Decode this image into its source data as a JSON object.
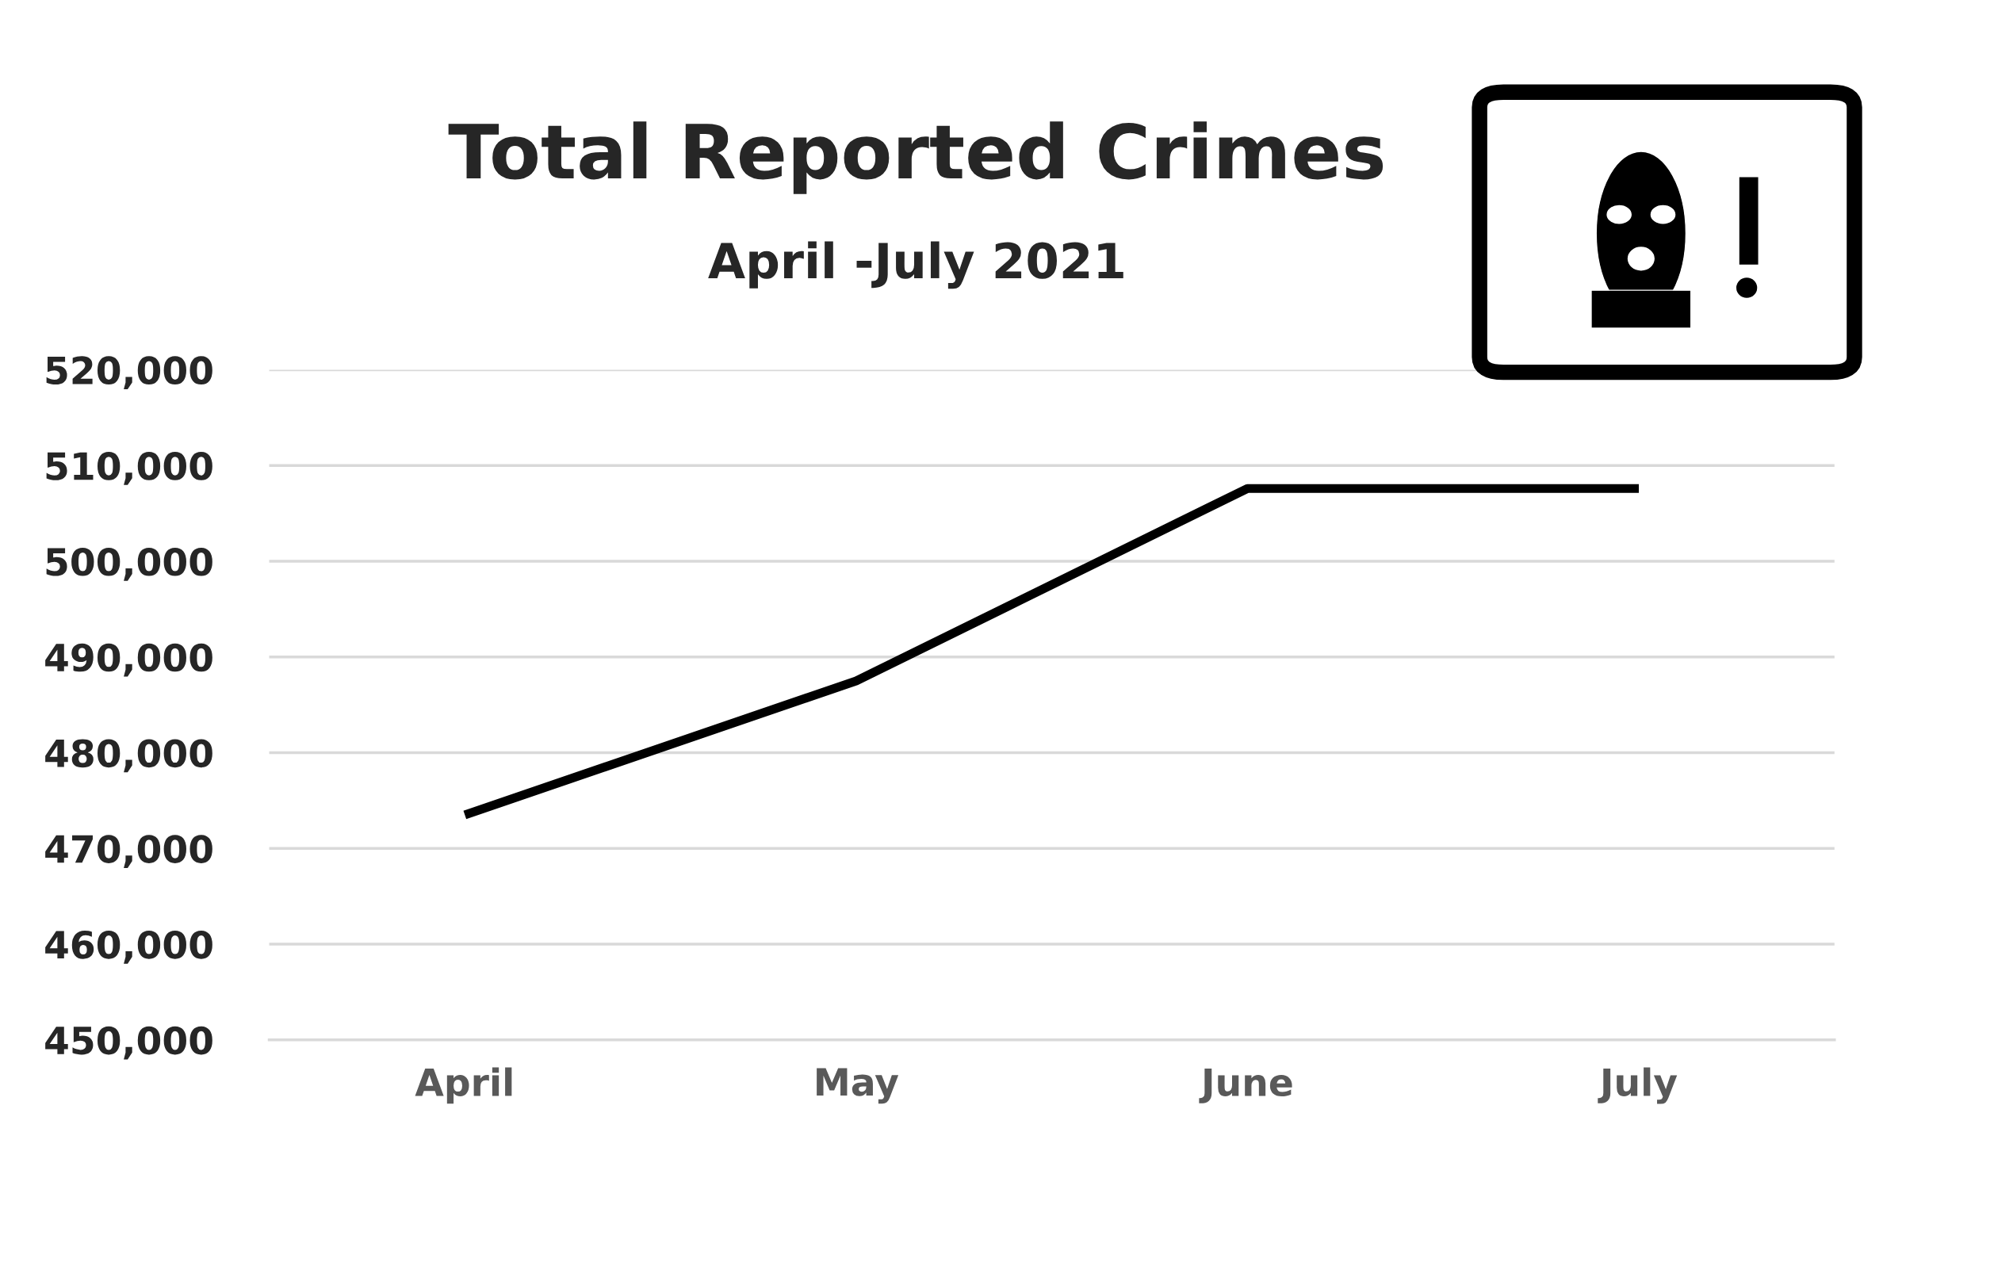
{
  "chart_data": {
    "type": "line",
    "title": "Total Reported Crimes",
    "subtitle": "April -July 2021",
    "categories": [
      "April",
      "May",
      "June",
      "July"
    ],
    "series": [
      {
        "color": "#000000",
        "values": [
          473500,
          487500,
          507600,
          507600
        ]
      }
    ],
    "ylim": [
      450000,
      520000
    ],
    "yticks": [
      {
        "value": 450000,
        "label": "450,000"
      },
      {
        "value": 460000,
        "label": "460,000"
      },
      {
        "value": 470000,
        "label": "470,000"
      },
      {
        "value": 480000,
        "label": "480,000"
      },
      {
        "value": 490000,
        "label": "490,000"
      },
      {
        "value": 500000,
        "label": "500,000"
      },
      {
        "value": 510000,
        "label": "510,000"
      },
      {
        "value": 520000,
        "label": "520,000"
      }
    ],
    "grid": "y",
    "marker": "none",
    "line_style": "solid"
  }
}
